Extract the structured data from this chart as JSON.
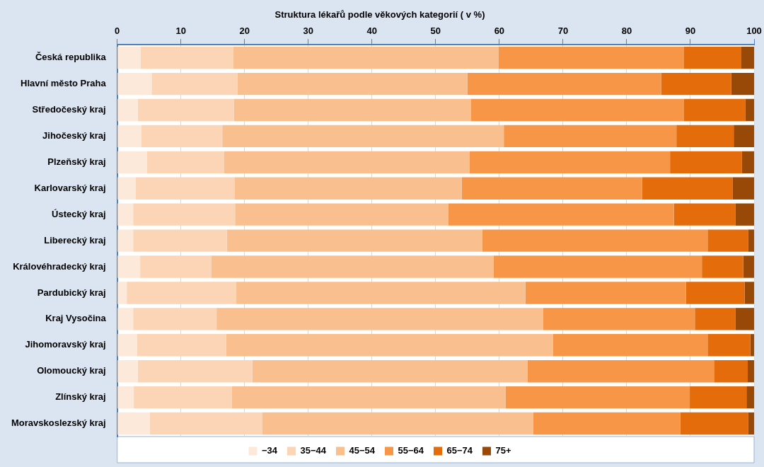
{
  "chart_data": {
    "type": "bar",
    "orientation": "horizontal",
    "stacked": true,
    "title": "Struktura lékařů podle věkových kategorií ( v %)",
    "categories": [
      "Česká republika",
      "Hlavní město Praha",
      "Středočeský kraj",
      "Jihočeský kraj",
      "Plzeňský kraj",
      "Karlovarský kraj",
      "Ústecký kraj",
      "Liberecký kraj",
      "Královéhradecký kraj",
      "Pardubický kraj",
      "Kraj Vysočina",
      "Jihomoravský kraj",
      "Olomoucký kraj",
      "Zlínský kraj",
      "Moravskoslezský kraj"
    ],
    "series": [
      {
        "name": "−34",
        "color": "#fde9d9",
        "values": [
          3.7,
          5.4,
          3.2,
          3.8,
          4.7,
          2.9,
          2.5,
          2.5,
          3.6,
          1.5,
          2.5,
          3.1,
          3.2,
          2.6,
          5.1
        ]
      },
      {
        "name": "35−44",
        "color": "#fbd5b5",
        "values": [
          14.5,
          13.5,
          15.1,
          12.7,
          12.1,
          15.5,
          16.0,
          14.7,
          11.2,
          17.2,
          13.1,
          14.0,
          18.0,
          15.4,
          17.7
        ]
      },
      {
        "name": "45−54",
        "color": "#f9bf8f",
        "values": [
          41.7,
          36.1,
          37.2,
          44.2,
          38.5,
          35.7,
          33.5,
          40.1,
          44.3,
          45.4,
          51.3,
          51.3,
          43.2,
          43.0,
          42.5
        ]
      },
      {
        "name": "55−64",
        "color": "#f79646",
        "values": [
          29.1,
          30.4,
          33.5,
          27.1,
          31.5,
          28.3,
          35.4,
          35.4,
          32.7,
          25.2,
          23.8,
          24.3,
          29.3,
          28.9,
          23.1
        ]
      },
      {
        "name": "65−74",
        "color": "#e46c0a",
        "values": [
          9.0,
          11.0,
          9.6,
          9.0,
          11.3,
          14.2,
          9.7,
          6.4,
          6.5,
          9.2,
          6.4,
          6.7,
          5.3,
          8.9,
          10.7
        ]
      },
      {
        "name": "75+",
        "color": "#984807",
        "values": [
          2.0,
          3.6,
          1.4,
          3.2,
          1.9,
          3.4,
          2.9,
          0.9,
          1.7,
          1.5,
          2.9,
          0.6,
          1.0,
          1.2,
          0.9
        ]
      }
    ],
    "xlim": [
      0,
      100
    ],
    "xticks": [
      0,
      10,
      20,
      30,
      40,
      50,
      60,
      70,
      80,
      90,
      100
    ],
    "grid": "x",
    "legend": "bottom"
  }
}
